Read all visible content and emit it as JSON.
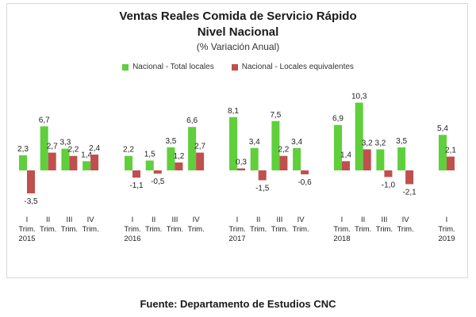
{
  "chart_data": {
    "type": "bar",
    "title": "Ventas Reales Comida de Servicio Rápido",
    "subtitle": "Nivel Nacional",
    "unit_label": "(% Variación Anual)",
    "categories": [
      {
        "q": "I",
        "label": "Trim.",
        "year": "2015"
      },
      {
        "q": "II",
        "label": "Trim.",
        "year": ""
      },
      {
        "q": "III",
        "label": "Trim.",
        "year": ""
      },
      {
        "q": "IV",
        "label": "Trim.",
        "year": ""
      },
      {
        "q": "I",
        "label": "Trim.",
        "year": "2016"
      },
      {
        "q": "II",
        "label": "Trim.",
        "year": ""
      },
      {
        "q": "III",
        "label": "Trim.",
        "year": ""
      },
      {
        "q": "IV",
        "label": "Trim.",
        "year": ""
      },
      {
        "q": "I",
        "label": "Trim.",
        "year": "2017"
      },
      {
        "q": "II",
        "label": "Trim.",
        "year": ""
      },
      {
        "q": "III",
        "label": "Trim.",
        "year": ""
      },
      {
        "q": "IV",
        "label": "Trim.",
        "year": ""
      },
      {
        "q": "I",
        "label": "Trim.",
        "year": "2018"
      },
      {
        "q": "II",
        "label": "Trim.",
        "year": ""
      },
      {
        "q": "III",
        "label": "Trim.",
        "year": ""
      },
      {
        "q": "IV",
        "label": "Trim.",
        "year": ""
      },
      {
        "q": "I",
        "label": "Trim.",
        "year": "2019"
      }
    ],
    "series": [
      {
        "name": "Nacional - Total locales",
        "color": "#5fcf3c",
        "values": [
          2.3,
          6.7,
          3.3,
          1.4,
          2.2,
          1.5,
          3.5,
          6.6,
          8.1,
          3.4,
          7.5,
          3.4,
          6.9,
          10.3,
          3.2,
          3.5,
          5.4
        ],
        "labels": [
          "2,3",
          "6,7",
          "3,3",
          "1,4",
          "2,2",
          "1,5",
          "3,5",
          "6,6",
          "8,1",
          "3,4",
          "7,5",
          "3,4",
          "6,9",
          "10,3",
          "3,2",
          "3,5",
          "5,4"
        ]
      },
      {
        "name": "Nacional - Locales equivalentes",
        "color": "#c0504d",
        "values": [
          -3.5,
          2.7,
          2.2,
          2.4,
          -1.1,
          -0.5,
          1.2,
          2.7,
          0.3,
          -1.5,
          2.2,
          -0.6,
          1.4,
          3.2,
          -1.0,
          -2.1,
          2.1
        ],
        "labels": [
          "-3,5",
          "2,7",
          "2,2",
          "2,4",
          "-1,1",
          "-0,5",
          "1,2",
          "2,7",
          "0,3",
          "-1,5",
          "2,2",
          "-0,6",
          "1,4",
          "3,2",
          "-1,0",
          "-2,1",
          "2,1"
        ]
      }
    ],
    "legend_position": "top",
    "grid": false
  },
  "footer": {
    "source": "Fuente: Departamento de Estudios CNC"
  }
}
